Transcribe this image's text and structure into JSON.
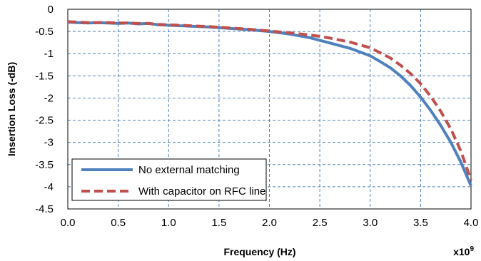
{
  "chart_data": {
    "type": "line",
    "title": "",
    "xlabel": "Frequency (Hz)",
    "ylabel": "Insertion Loss (-dB)",
    "x_multiplier_base": "x10",
    "x_multiplier_exp": "9",
    "xlim": [
      0.0,
      4.0
    ],
    "ylim": [
      -4.5,
      0
    ],
    "x_ticks": [
      "0.0",
      "0.5",
      "1.0",
      "1.5",
      "2.0",
      "2.5",
      "3.0",
      "3.5",
      "4.0"
    ],
    "y_ticks": [
      "0",
      "-0.5",
      "-1",
      "-1.5",
      "-2",
      "-2.5",
      "-3",
      "-3.5",
      "-4",
      "-4.5"
    ],
    "grid": true,
    "legend_position": "bottom-left",
    "series": [
      {
        "name": "No external matching",
        "color": "#4f81bd",
        "style": "solid",
        "x": [
          0.0,
          0.1,
          0.2,
          0.3,
          0.4,
          0.5,
          0.6,
          0.7,
          0.8,
          0.9,
          1.0,
          1.2,
          1.4,
          1.6,
          1.8,
          2.0,
          2.2,
          2.4,
          2.5,
          2.6,
          2.8,
          3.0,
          3.1,
          3.2,
          3.3,
          3.4,
          3.5,
          3.6,
          3.7,
          3.8,
          3.9,
          4.0
        ],
        "y": [
          -0.29,
          -0.3,
          -0.31,
          -0.3,
          -0.31,
          -0.32,
          -0.31,
          -0.33,
          -0.32,
          -0.35,
          -0.36,
          -0.38,
          -0.4,
          -0.43,
          -0.46,
          -0.5,
          -0.56,
          -0.64,
          -0.7,
          -0.76,
          -0.88,
          -1.05,
          -1.18,
          -1.32,
          -1.5,
          -1.72,
          -1.98,
          -2.28,
          -2.62,
          -3.0,
          -3.45,
          -3.98
        ]
      },
      {
        "name": "With capacitor on RFC line",
        "color": "#c0504d",
        "style": "dashed",
        "x": [
          0.0,
          0.1,
          0.2,
          0.3,
          0.4,
          0.5,
          0.6,
          0.7,
          0.8,
          0.9,
          1.0,
          1.2,
          1.4,
          1.6,
          1.8,
          2.0,
          2.2,
          2.4,
          2.5,
          2.6,
          2.8,
          3.0,
          3.1,
          3.2,
          3.3,
          3.4,
          3.5,
          3.6,
          3.7,
          3.8,
          3.9,
          4.0
        ],
        "y": [
          -0.28,
          -0.29,
          -0.3,
          -0.3,
          -0.3,
          -0.31,
          -0.31,
          -0.32,
          -0.32,
          -0.34,
          -0.35,
          -0.37,
          -0.39,
          -0.42,
          -0.45,
          -0.49,
          -0.53,
          -0.58,
          -0.61,
          -0.65,
          -0.74,
          -0.87,
          -0.98,
          -1.1,
          -1.26,
          -1.45,
          -1.68,
          -1.96,
          -2.3,
          -2.7,
          -3.2,
          -3.85
        ]
      }
    ]
  }
}
